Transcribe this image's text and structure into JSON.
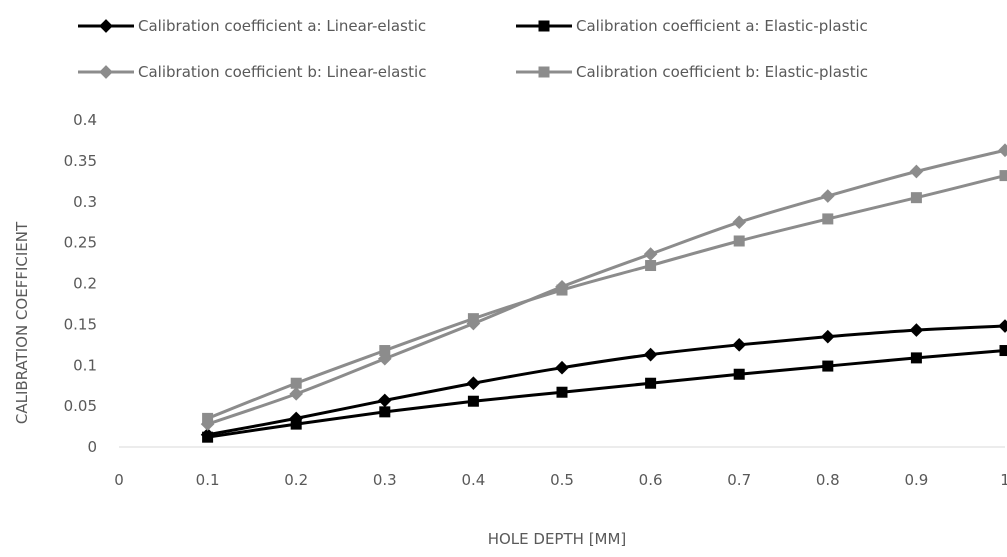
{
  "chart_data": {
    "type": "line",
    "title": "",
    "xlabel": "HOLE DEPTH [MM]",
    "ylabel": "CALIBRATION COEFFICIENT",
    "xlim": [
      0,
      1
    ],
    "ylim": [
      0,
      0.4
    ],
    "x_ticks": [
      "0",
      "0.1",
      "0.2",
      "0.3",
      "0.4",
      "0.5",
      "0.6",
      "0.7",
      "0.8",
      "0.9",
      "1"
    ],
    "y_ticks": [
      "0",
      "0.05",
      "0.1",
      "0.15",
      "0.2",
      "0.25",
      "0.3",
      "0.35",
      "0.4"
    ],
    "grid": false,
    "legend_position": "top",
    "x": [
      0.1,
      0.2,
      0.3,
      0.4,
      0.5,
      0.6,
      0.7,
      0.8,
      0.9,
      1.0
    ],
    "series": [
      {
        "name": "Calibration coefficient a: Linear-elastic",
        "color": "#000000",
        "marker": "diamond",
        "values": [
          0.015,
          0.035,
          0.057,
          0.078,
          0.097,
          0.113,
          0.125,
          0.135,
          0.143,
          0.148
        ]
      },
      {
        "name": "Calibration coefficient a: Elastic-plastic",
        "color": "#000000",
        "marker": "square",
        "values": [
          0.012,
          0.028,
          0.043,
          0.056,
          0.067,
          0.078,
          0.089,
          0.099,
          0.109,
          0.118
        ]
      },
      {
        "name": "Calibration coefficient b: Linear-elastic",
        "color": "#8c8c8c",
        "marker": "diamond",
        "values": [
          0.028,
          0.065,
          0.108,
          0.151,
          0.196,
          0.236,
          0.275,
          0.307,
          0.337,
          0.363
        ]
      },
      {
        "name": "Calibration coefficient b: Elastic-plastic",
        "color": "#8c8c8c",
        "marker": "square",
        "values": [
          0.035,
          0.078,
          0.118,
          0.157,
          0.192,
          0.222,
          0.252,
          0.279,
          0.305,
          0.332
        ]
      }
    ]
  }
}
